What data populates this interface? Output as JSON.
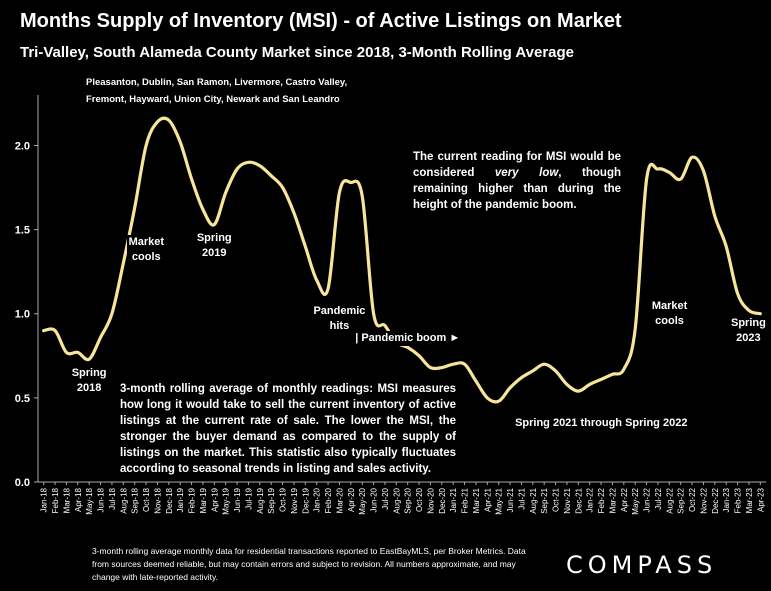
{
  "title": "Months Supply of Inventory (MSI) - of Active Listings on Market",
  "subtitle": "Tri-Valley, South Alameda County Market since 2018, 3-Month Rolling Average",
  "region_note_line1": "Pleasanton, Dublin, San Ramon, Livermore, Castro Valley,",
  "region_note_line2": "Fremont, Hayward, Union City, Newark and San Leandro",
  "note_right_pre": "The current reading for MSI would be considered ",
  "note_right_em": "very low",
  "note_right_post": ", though remaining higher than during the height of the pandemic boom.",
  "note_left": "3-month rolling average of monthly readings: MSI measures how long it would take to sell the current inventory of active listings at the current rate of sale. The lower the MSI, the stronger the buyer demand as compared to the supply of listings on the market. This statistic also typically fluctuates according to seasonal trends in listing and sales activity.",
  "footnote": "3-month rolling average monthly data for residential transactions reported to EastBayMLS, per Broker Metrics. Data from sources deemed reliable, but may contain errors and subject to revision. All numbers approximate, and may change with late-reported activity.",
  "logo": "COMPASS",
  "colors": {
    "background": "#000000",
    "line": "#f7e59a",
    "text": "#ffffff",
    "axis": "#aaaaaa"
  },
  "chart_data": {
    "type": "line",
    "x": [
      "Jan-18",
      "Feb-18",
      "Mar-18",
      "Apr-18",
      "May-18",
      "Jun-18",
      "Jul-18",
      "Aug-18",
      "Sep-18",
      "Oct-18",
      "Nov-18",
      "Dec-18",
      "Jan-19",
      "Feb-19",
      "Mar-19",
      "Apr-19",
      "May-19",
      "Jun-19",
      "Jul-19",
      "Aug-19",
      "Sep-19",
      "Oct-19",
      "Nov-19",
      "Dec-19",
      "Jan-20",
      "Feb-20",
      "Mar-20",
      "Apr-20",
      "May-20",
      "Jun-20",
      "Jul-20",
      "Aug-20",
      "Sep-20",
      "Oct-20",
      "Nov-20",
      "Dec-20",
      "Jan-21",
      "Feb-21",
      "Mar-21",
      "Apr-21",
      "May-21",
      "Jun-21",
      "Jul-21",
      "Aug-21",
      "Sep-21",
      "Oct-21",
      "Nov-21",
      "Dec-21",
      "Jan-22",
      "Feb-22",
      "Mar-22",
      "Apr-22",
      "May-22",
      "Jun-22",
      "Jul-22",
      "Aug-22",
      "Sep-22",
      "Oct-22",
      "Nov-22",
      "Dec-22",
      "Jan-23",
      "Feb-23",
      "Mar-23",
      "Apr-23"
    ],
    "series": [
      {
        "values": [
          0.9,
          0.9,
          0.77,
          0.77,
          0.73,
          0.86,
          1.0,
          1.3,
          1.63,
          2.0,
          2.14,
          2.15,
          2.02,
          1.8,
          1.62,
          1.53,
          1.72,
          1.86,
          1.9,
          1.88,
          1.82,
          1.75,
          1.6,
          1.4,
          1.2,
          1.15,
          1.72,
          1.78,
          1.7,
          1.0,
          0.93,
          0.83,
          0.8,
          0.75,
          0.68,
          0.68,
          0.7,
          0.7,
          0.6,
          0.5,
          0.48,
          0.56,
          0.62,
          0.66,
          0.7,
          0.66,
          0.58,
          0.54,
          0.58,
          0.61,
          0.64,
          0.67,
          0.91,
          1.8,
          1.86,
          1.84,
          1.8,
          1.93,
          1.85,
          1.58,
          1.4,
          1.12,
          1.02,
          1.0
        ]
      }
    ],
    "ylim": [
      0,
      2.3
    ],
    "yticks": [
      "0.0",
      "0.5",
      "1.0",
      "1.5",
      "2.0"
    ],
    "grid": false,
    "annotations": [
      {
        "text": "Spring\n2018",
        "x": "May-18",
        "y": 0.6
      },
      {
        "text": "Market\ncools",
        "x": "Oct-18",
        "y": 1.38
      },
      {
        "text": "Spring\n2019",
        "x": "Apr-19",
        "y": 1.4
      },
      {
        "text": "Pandemic\nhits",
        "x": "Mar-20",
        "y": 0.97
      },
      {
        "text": "| Pandemic boom ►",
        "x": "Sep-20",
        "y": 0.85
      },
      {
        "text": "Spring 2021 through Spring 2022",
        "x": "Feb-22",
        "y": 0.35
      },
      {
        "text": "Market\ncools",
        "x": "Aug-22",
        "y": 1.0
      },
      {
        "text": "Spring\n2023",
        "x": "Mar-23",
        "y": 0.9
      }
    ]
  }
}
